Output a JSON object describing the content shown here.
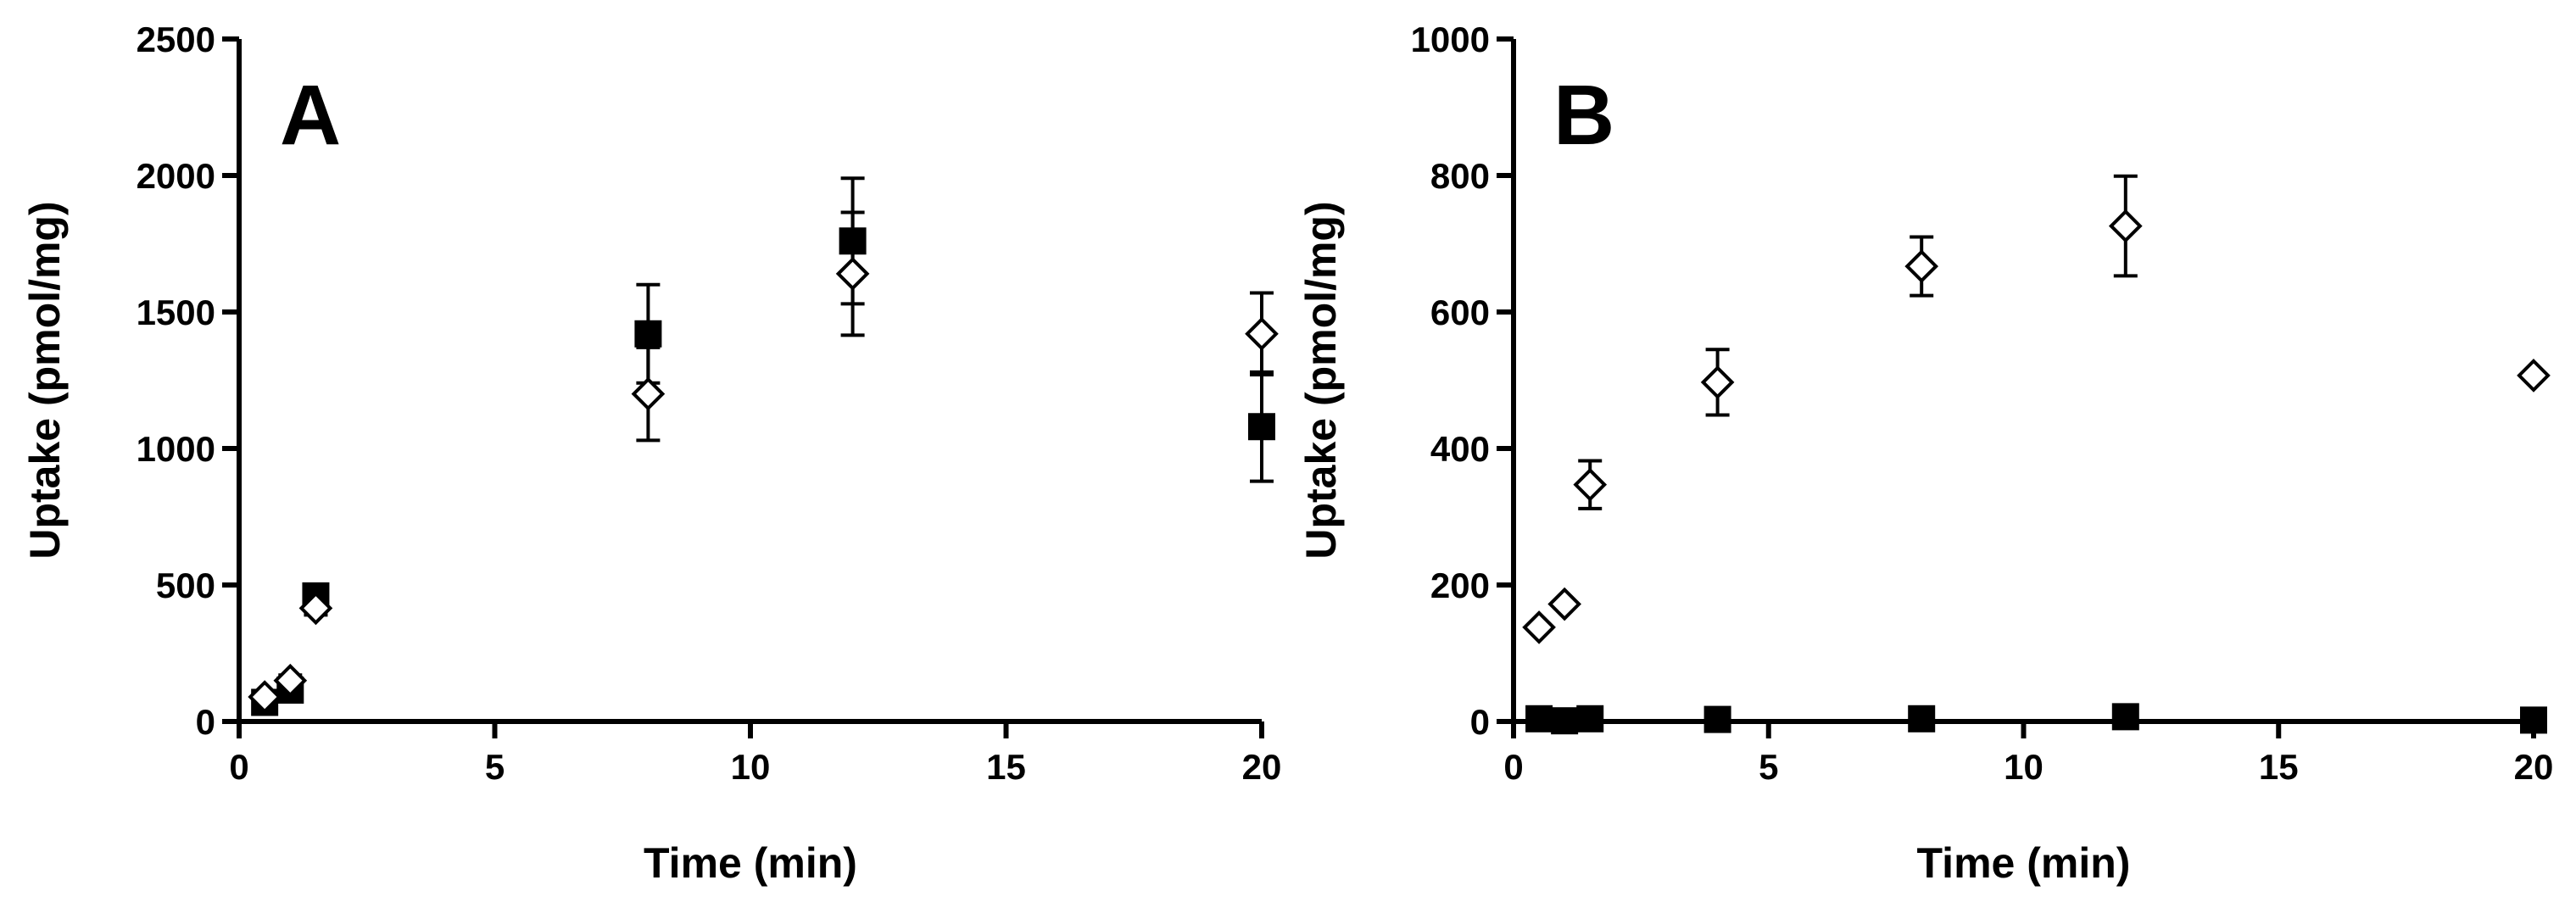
{
  "chart_data": [
    {
      "panel_label": "A",
      "type": "scatter",
      "xlabel": "Time (min)",
      "ylabel": "Uptake (pmol/mg)",
      "xlim": [
        0,
        20
      ],
      "ylim": [
        0,
        2500
      ],
      "xticks": [
        0,
        5,
        10,
        15,
        20
      ],
      "yticks": [
        0,
        500,
        1000,
        1500,
        2000,
        2500
      ],
      "grid": false,
      "series": [
        {
          "marker": "square-filled",
          "points": [
            {
              "x": 0.5,
              "y": 70,
              "err": 15
            },
            {
              "x": 1.0,
              "y": 115,
              "err": 20
            },
            {
              "x": 1.5,
              "y": 460,
              "err": 25
            },
            {
              "x": 8,
              "y": 1420,
              "err": 180
            },
            {
              "x": 12,
              "y": 1760,
              "err": 230
            },
            {
              "x": 20,
              "y": 1080,
              "err": 200
            }
          ]
        },
        {
          "marker": "diamond-open",
          "points": [
            {
              "x": 0.5,
              "y": 90,
              "err": 15
            },
            {
              "x": 1.0,
              "y": 150,
              "err": 20
            },
            {
              "x": 1.5,
              "y": 415,
              "err": 25
            },
            {
              "x": 8,
              "y": 1200,
              "err": 170
            },
            {
              "x": 12,
              "y": 1640,
              "err": 225
            },
            {
              "x": 20,
              "y": 1420,
              "err": 150
            }
          ]
        }
      ]
    },
    {
      "panel_label": "B",
      "type": "scatter",
      "xlabel": "Time (min)",
      "ylabel": "Uptake (pmol/mg)",
      "xlim": [
        0,
        20
      ],
      "ylim": [
        0,
        1000
      ],
      "xticks": [
        0,
        5,
        10,
        15,
        20
      ],
      "yticks": [
        0,
        200,
        400,
        600,
        800,
        1000
      ],
      "grid": false,
      "series": [
        {
          "marker": "diamond-open",
          "points": [
            {
              "x": 0.5,
              "y": 138,
              "err": 0
            },
            {
              "x": 1.0,
              "y": 172,
              "err": 0
            },
            {
              "x": 1.5,
              "y": 347,
              "err": 35
            },
            {
              "x": 4,
              "y": 497,
              "err": 48
            },
            {
              "x": 8,
              "y": 667,
              "err": 43
            },
            {
              "x": 12,
              "y": 726,
              "err": 73
            },
            {
              "x": 20,
              "y": 507,
              "err": 0
            }
          ]
        },
        {
          "marker": "square-filled",
          "points": [
            {
              "x": 0.5,
              "y": 4,
              "err": 0
            },
            {
              "x": 1.0,
              "y": 1,
              "err": 0
            },
            {
              "x": 1.5,
              "y": 4,
              "err": 0
            },
            {
              "x": 4,
              "y": 3,
              "err": 0
            },
            {
              "x": 8,
              "y": 4,
              "err": 0
            },
            {
              "x": 12,
              "y": 7,
              "err": 0
            },
            {
              "x": 20,
              "y": 2,
              "err": 0
            }
          ]
        }
      ]
    }
  ]
}
